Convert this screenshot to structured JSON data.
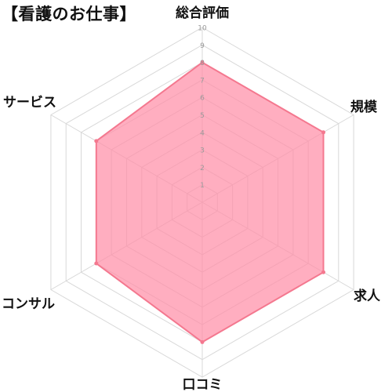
{
  "title": "【看護のお仕事】",
  "chart_data": {
    "type": "radar",
    "axes": [
      "総合評価",
      "規模",
      "求人",
      "口コミ",
      "コンサル",
      "サービス"
    ],
    "values": [
      8,
      8,
      8,
      8,
      7,
      7
    ],
    "rlim": [
      0,
      10
    ],
    "ticks": [
      "1",
      "2",
      "3",
      "4",
      "5",
      "6",
      "7",
      "8",
      "9",
      "10"
    ],
    "colors": {
      "fill": "#ff8fa8",
      "stroke": "#f4788f",
      "grid": "#d8d8d8",
      "text": "#111111",
      "tick": "#9a9a9a"
    }
  }
}
